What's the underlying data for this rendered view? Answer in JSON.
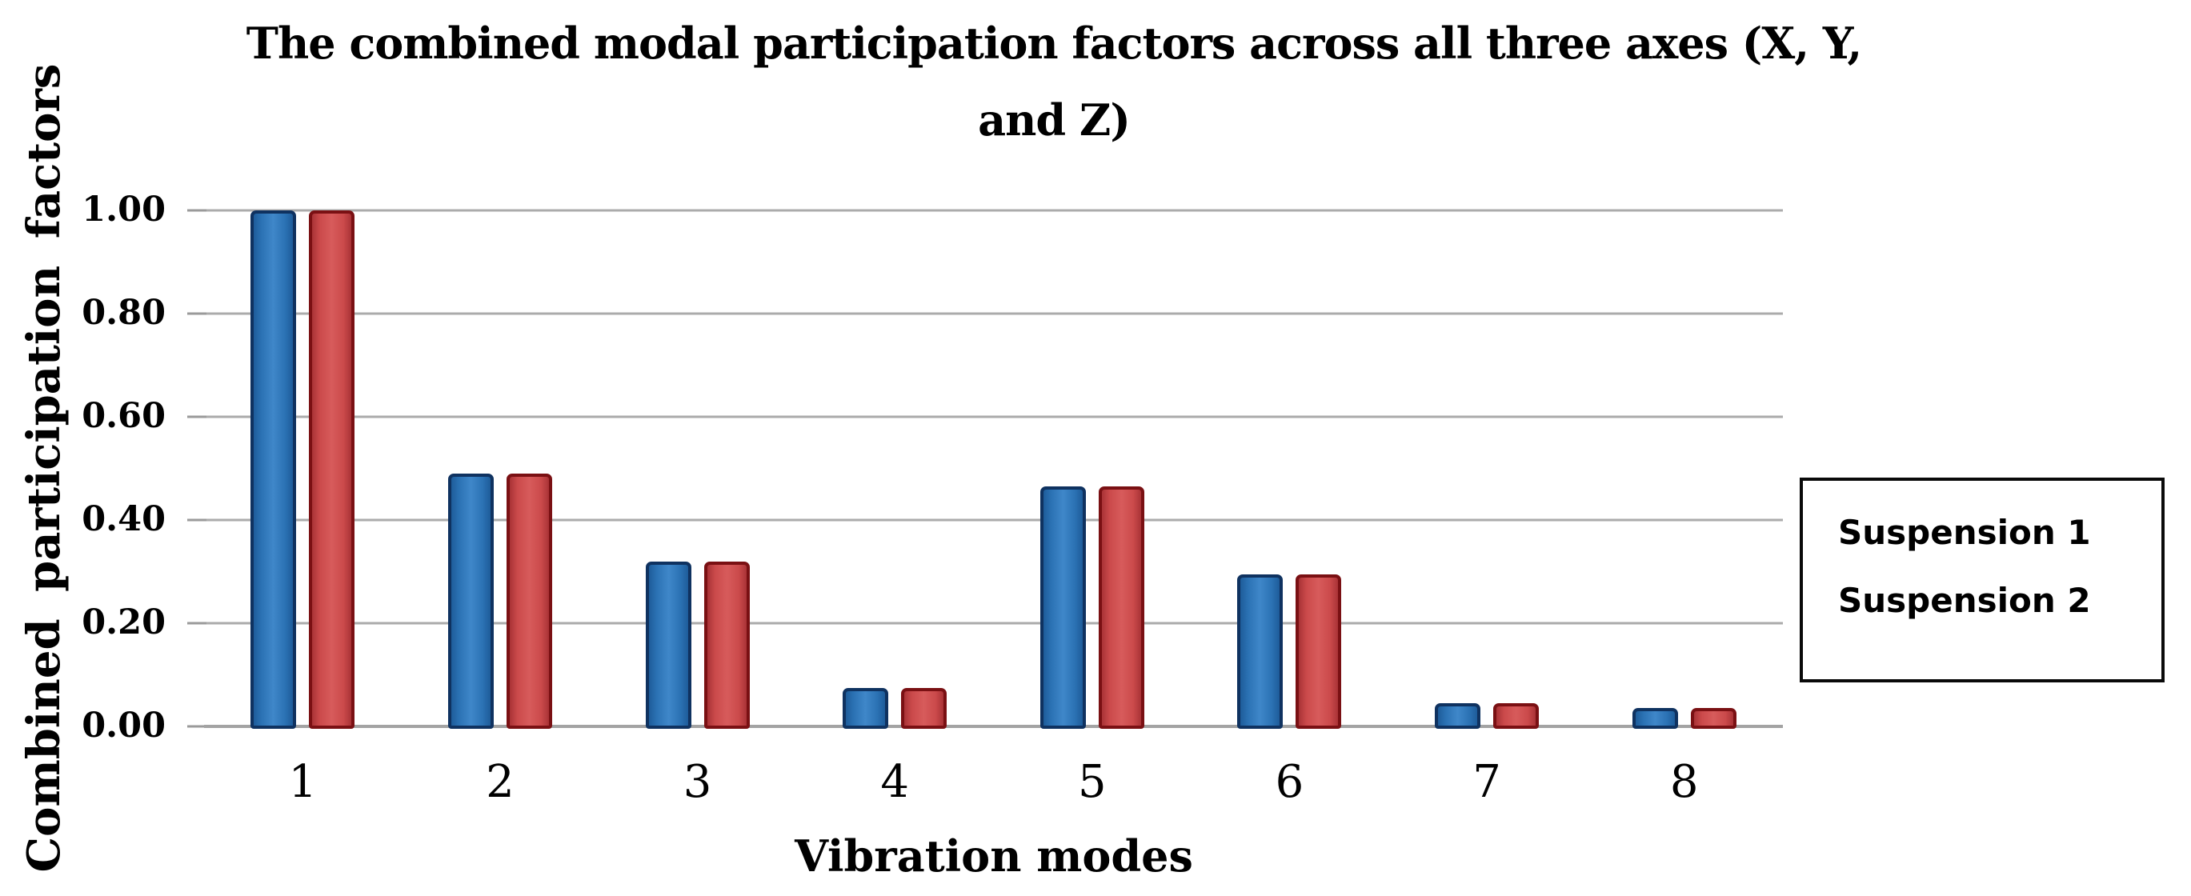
{
  "title": {
    "line1": "The combined modal participation factors across all three axes (X, Y,",
    "line2": "and Z)"
  },
  "y_axis": {
    "title": "Combined participation factors",
    "tick_labels": [
      "1.00",
      "0.80",
      "0.60",
      "0.40",
      "0.20",
      "0.00"
    ]
  },
  "x_axis": {
    "title": "Vibration modes"
  },
  "legend": {
    "items": [
      "Suspension 1",
      "Suspension 2"
    ]
  },
  "colors": {
    "suspension1_fill": "#2B72B4",
    "suspension1_fill_light": "#3F87C9",
    "suspension1_fill_dark": "#1E5C9A",
    "suspension1_border": "#0F3260",
    "suspension2_fill": "#CB4A4B",
    "suspension2_fill_light": "#D75B5B",
    "suspension2_fill_dark": "#A93336",
    "suspension2_border": "#7A1013",
    "gridline": "#ABABAB",
    "axis_line": "#A3A3A3",
    "tick_mark": "#9A9A9A"
  },
  "chart_data": {
    "type": "bar",
    "title": "The combined modal participation factors across all three axes (X, Y, and Z)",
    "categories": [
      "1",
      "2",
      "3",
      "4",
      "5",
      "6",
      "7",
      "8"
    ],
    "series": [
      {
        "name": "Suspension 1",
        "color": "#2B72B4",
        "values": [
          1.0,
          0.49,
          0.32,
          0.075,
          0.465,
          0.295,
          0.045,
          0.035
        ]
      },
      {
        "name": "Suspension 2",
        "color": "#CB4A4B",
        "values": [
          1.0,
          0.49,
          0.32,
          0.075,
          0.465,
          0.295,
          0.045,
          0.035
        ]
      }
    ],
    "xlabel": "Vibration modes",
    "ylabel": "Combined participation factors",
    "ylim": [
      0,
      1.0
    ],
    "ytick_step": 0.2,
    "grid": true,
    "legend_position": "right"
  }
}
